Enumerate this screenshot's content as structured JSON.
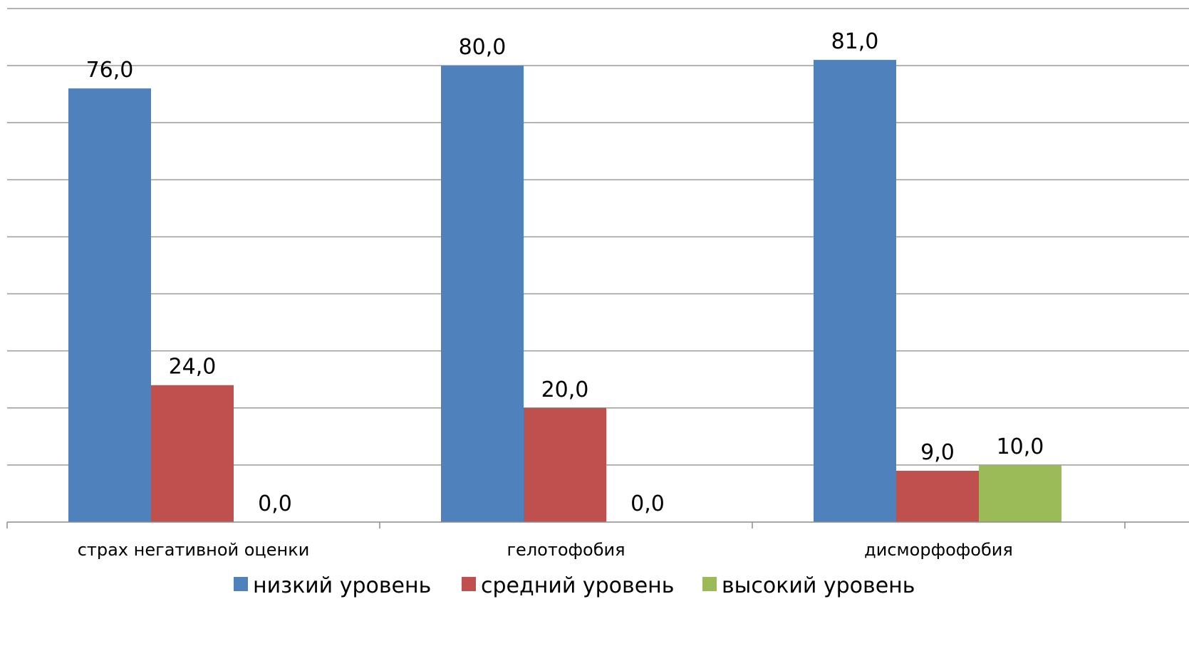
{
  "chart_data": {
    "type": "bar",
    "categories": [
      "страх негативной оценки",
      "гелотофобия",
      "дисморфофобия"
    ],
    "series": [
      {
        "name": "низкий уровень",
        "values": [
          76.0,
          80.0,
          81.0
        ],
        "labels": [
          "76,0",
          "80,0",
          "81,0"
        ],
        "color": "#4f81bd"
      },
      {
        "name": "средний уровень",
        "values": [
          24.0,
          20.0,
          9.0
        ],
        "labels": [
          "24,0",
          "20,0",
          "9,0"
        ],
        "color": "#c0504d"
      },
      {
        "name": "высокий уровень",
        "values": [
          0.0,
          0.0,
          10.0
        ],
        "labels": [
          "0,0",
          "0,0",
          "10,0"
        ],
        "color": "#9bbb59"
      }
    ],
    "ylim": [
      0,
      90
    ],
    "ytick_step": 10,
    "grid": true,
    "legend_position": "bottom",
    "title": "",
    "xlabel": "",
    "ylabel": ""
  }
}
